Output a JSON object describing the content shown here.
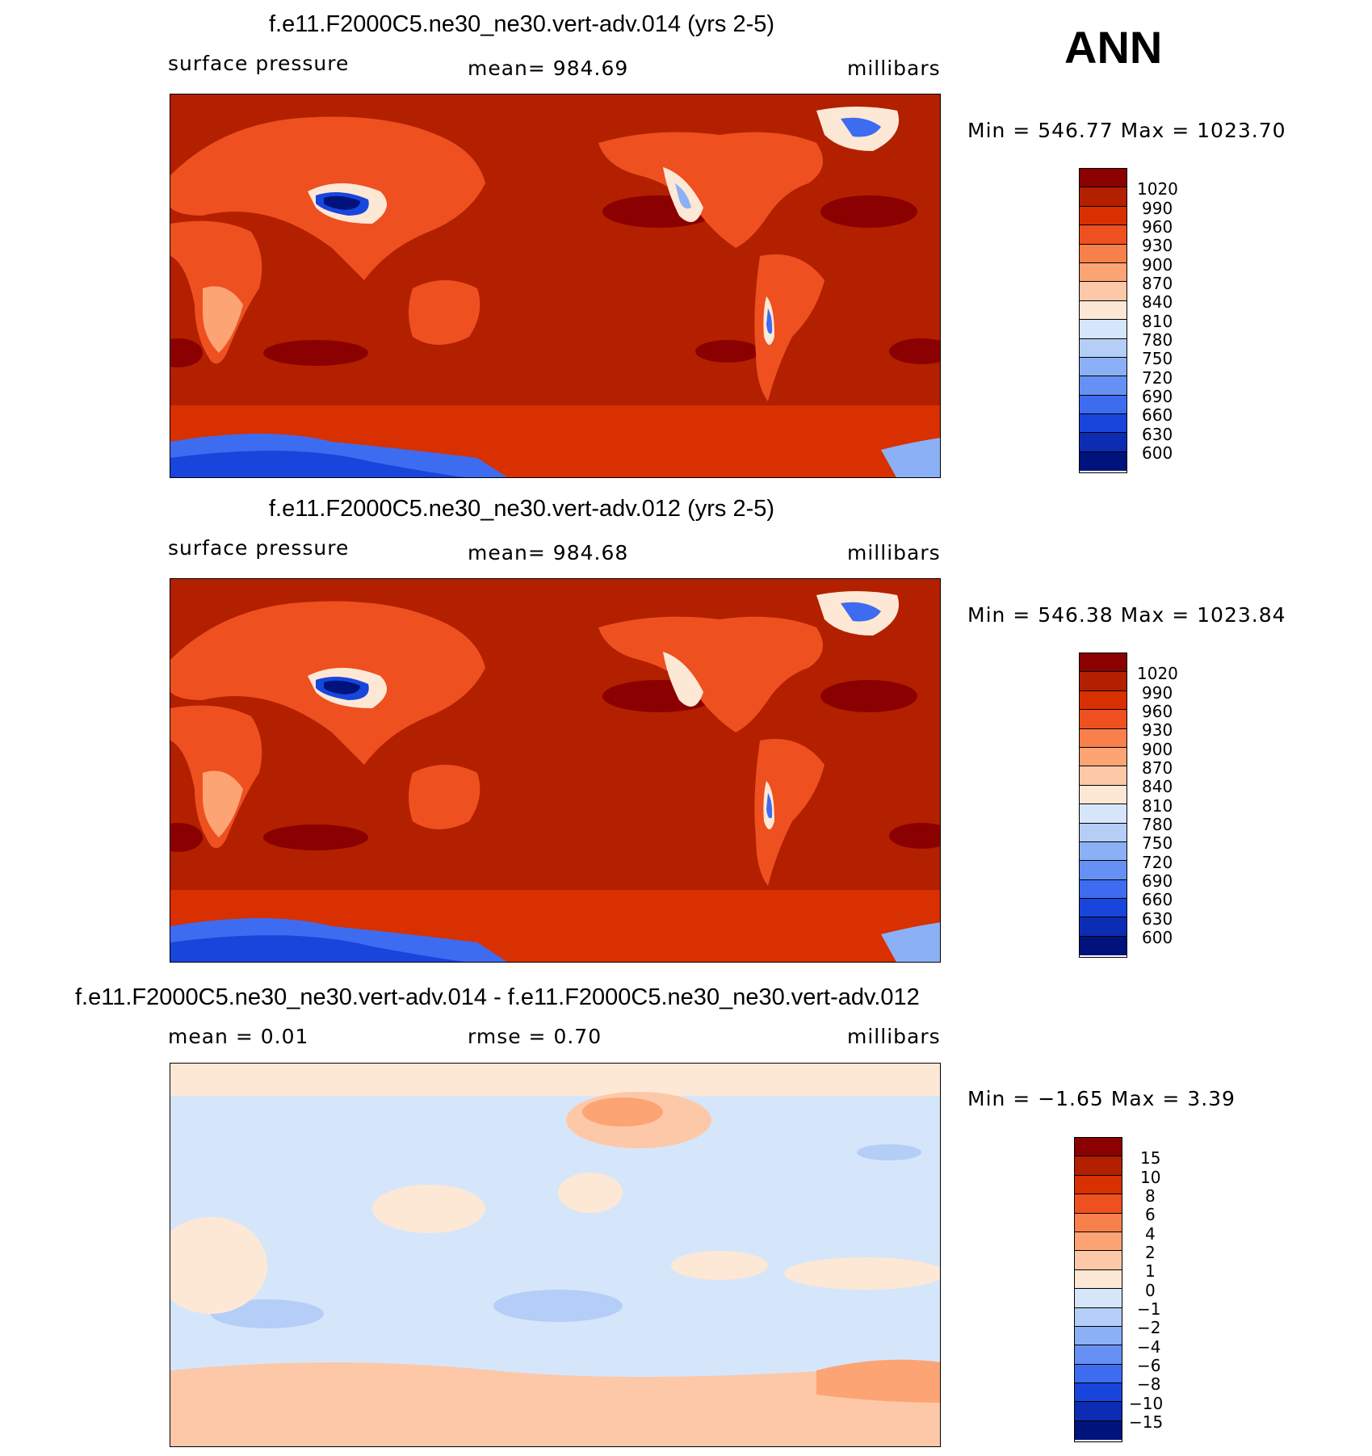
{
  "season_label": "ANN",
  "panels": [
    {
      "title": "f.e11.F2000C5.ne30_ne30.vert-adv.014 (yrs 2-5)",
      "left_label": "surface pressure",
      "center_label": "mean=  984.69",
      "right_label": "millibars",
      "minmax": "Min  =  546.77  Max  =  1023.70",
      "colorbar_labels": [
        "1020",
        "990",
        "960",
        "930",
        "900",
        "870",
        "840",
        "810",
        "780",
        "750",
        "720",
        "690",
        "660",
        "630",
        "600"
      ]
    },
    {
      "title": "f.e11.F2000C5.ne30_ne30.vert-adv.012 (yrs 2-5)",
      "left_label": "surface pressure",
      "center_label": "mean=  984.68",
      "right_label": "millibars",
      "minmax": "Min  =  546.38  Max  =  1023.84",
      "colorbar_labels": [
        "1020",
        "990",
        "960",
        "930",
        "900",
        "870",
        "840",
        "810",
        "780",
        "750",
        "720",
        "690",
        "660",
        "630",
        "600"
      ]
    },
    {
      "title": "f.e11.F2000C5.ne30_ne30.vert-adv.014 - f.e11.F2000C5.ne30_ne30.vert-adv.012",
      "left_label": "mean  =      0.01",
      "center_label": "rmse  =      0.70",
      "right_label": "millibars",
      "minmax": "Min  =    −1.65  Max  =      3.39",
      "colorbar_labels": [
        "15",
        "10",
        "8",
        "6",
        "4",
        "2",
        "1",
        "0",
        "−1",
        "−2",
        "−4",
        "−6",
        "−8",
        "−10",
        "−15"
      ]
    }
  ],
  "colors": {
    "abs_scale": [
      "#8b0000",
      "#b22000",
      "#d83000",
      "#ee5020",
      "#f8804a",
      "#fca474",
      "#fdc8a8",
      "#fde8d6",
      "#d6e6fa",
      "#b4cef8",
      "#8cb0f6",
      "#6690f4",
      "#3e6cf0",
      "#1846dc",
      "#0c2cb4",
      "#00127c"
    ],
    "diff_scale": [
      "#8b0000",
      "#b22000",
      "#d83000",
      "#ee5020",
      "#f8804a",
      "#fca474",
      "#fdc8a8",
      "#fde8d6",
      "#d6e6fa",
      "#b4cef8",
      "#8cb0f6",
      "#6690f4",
      "#3e6cf0",
      "#1846dc",
      "#0c2cb4",
      "#00127c"
    ]
  }
}
